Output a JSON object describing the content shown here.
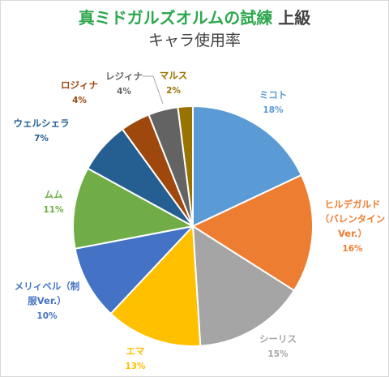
{
  "chart_data": {
    "type": "pie",
    "title_part1": "真ミドガルズオルムの試練",
    "title_part2": "上級",
    "subtitle": "キャラ使用率",
    "slices": [
      {
        "label": "ミコト",
        "value": 18,
        "pct": "18%",
        "color": "#5b9bd5"
      },
      {
        "label": "ヒルデガルド（バレンタインVer.）",
        "value": 16,
        "pct": "16%",
        "color": "#ed7d31"
      },
      {
        "label": "シーリス",
        "value": 15,
        "pct": "15%",
        "color": "#a5a5a5"
      },
      {
        "label": "エマ",
        "value": 13,
        "pct": "13%",
        "color": "#ffc000"
      },
      {
        "label": "メリィベル（制服Ver.）",
        "value": 10,
        "pct": "10%",
        "color": "#4472c4"
      },
      {
        "label": "ムム",
        "value": 11,
        "pct": "11%",
        "color": "#70ad47"
      },
      {
        "label": "ウェルシェラ",
        "value": 7,
        "pct": "7%",
        "color": "#255e91"
      },
      {
        "label": "ロジィナ",
        "value": 4,
        "pct": "4%",
        "color": "#9e480e"
      },
      {
        "label": "レジィナ",
        "value": 4,
        "pct": "4%",
        "color": "#636363"
      },
      {
        "label": "マルス",
        "value": 2,
        "pct": "2%",
        "color": "#997300"
      }
    ]
  },
  "label_text": {
    "hilde_line1": "ヒルデガルド",
    "hilde_line2": "（バレンタイン",
    "hilde_line3": "Ver.）",
    "meri_line1": "メリィベル（制",
    "meri_line2": "服Ver.）"
  }
}
